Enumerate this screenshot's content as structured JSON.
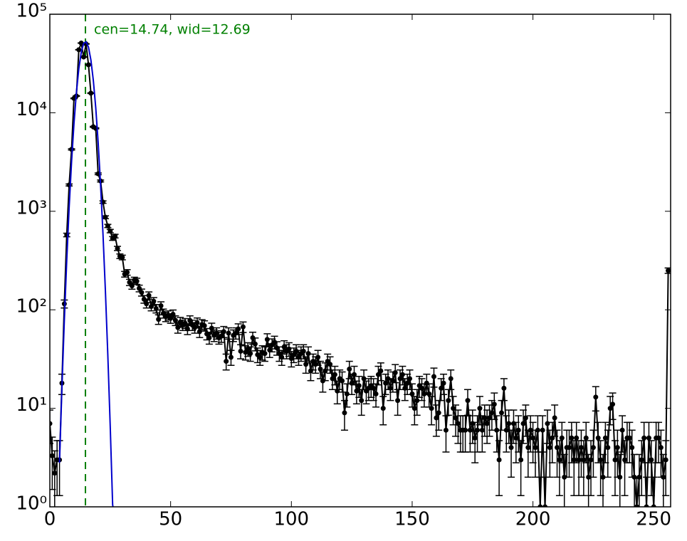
{
  "chart_data": {
    "type": "errorbar-line",
    "annotation": "cen=14.74, wid=12.69",
    "annotation_color": "#008000",
    "reference_line": {
      "x": 14.74,
      "color": "#008000",
      "style": "dashed"
    },
    "xlim": [
      0,
      257
    ],
    "xticks": [
      0,
      50,
      100,
      150,
      200,
      250
    ],
    "ylim": [
      1,
      100000
    ],
    "log_y": true,
    "yticks": [
      {
        "value": 1,
        "label": "10⁰"
      },
      {
        "value": 10,
        "label": "10¹"
      },
      {
        "value": 100,
        "label": "10²"
      },
      {
        "value": 1000,
        "label": "10³"
      },
      {
        "value": 10000,
        "label": "10⁴"
      },
      {
        "value": 100000,
        "label": "10⁵"
      }
    ],
    "grid": false,
    "series": [
      {
        "color": "#000000",
        "markers": true,
        "x": [
          0,
          1,
          2,
          3,
          4,
          5,
          6,
          7,
          8,
          9,
          10,
          11,
          12,
          13,
          14,
          15,
          16,
          17,
          18,
          19,
          20,
          21,
          22,
          23,
          24,
          25,
          26,
          27,
          28,
          29,
          30,
          31,
          32,
          33,
          34,
          35,
          36,
          37,
          38,
          39,
          40,
          41,
          42,
          43,
          44,
          45,
          46,
          47,
          48,
          49,
          50,
          51,
          52,
          53,
          54,
          55,
          56,
          57,
          58,
          59,
          60,
          61,
          62,
          63,
          64,
          65,
          66,
          67,
          68,
          69,
          70,
          71,
          72,
          73,
          74,
          75,
          76,
          77,
          78,
          79,
          80,
          81,
          82,
          83,
          84,
          85,
          86,
          87,
          88,
          89,
          90,
          91,
          92,
          93,
          94,
          95,
          96,
          97,
          98,
          99,
          100,
          101,
          102,
          103,
          104,
          105,
          106,
          107,
          108,
          109,
          110,
          111,
          112,
          113,
          114,
          115,
          116,
          117,
          118,
          119,
          120,
          121,
          122,
          123,
          124,
          125,
          126,
          127,
          128,
          129,
          130,
          131,
          132,
          133,
          134,
          135,
          136,
          137,
          138,
          139,
          140,
          141,
          142,
          143,
          144,
          145,
          146,
          147,
          148,
          149,
          150,
          151,
          152,
          153,
          154,
          155,
          156,
          157,
          158,
          159,
          160,
          161,
          162,
          163,
          164,
          165,
          166,
          167,
          168,
          169,
          170,
          171,
          172,
          173,
          174,
          175,
          176,
          177,
          178,
          179,
          180,
          181,
          182,
          183,
          184,
          185,
          186,
          187,
          188,
          189,
          190,
          191,
          192,
          193,
          194,
          195,
          196,
          197,
          198,
          199,
          200,
          201,
          202,
          203,
          204,
          205,
          206,
          207,
          208,
          209,
          210,
          211,
          212,
          213,
          214,
          215,
          216,
          217,
          218,
          219,
          220,
          221,
          222,
          223,
          224,
          225,
          226,
          227,
          228,
          229,
          230,
          231,
          232,
          233,
          234,
          235,
          236,
          237,
          238,
          239,
          240,
          241,
          242,
          243,
          244,
          245,
          246,
          247,
          248,
          249,
          250,
          251,
          252,
          253,
          254,
          255,
          256
        ],
        "values": [
          7,
          3.3,
          2.2,
          3,
          3,
          18,
          115,
          575,
          1850,
          4250,
          14000,
          14800,
          43600,
          51000,
          36800,
          50000,
          30700,
          15800,
          7200,
          6950,
          2400,
          2030,
          1240,
          870,
          710,
          630,
          530,
          560,
          420,
          350,
          340,
          230,
          240,
          190,
          175,
          200,
          195,
          165,
          150,
          128,
          115,
          140,
          108,
          122,
          103,
          80,
          110,
          92,
          85,
          88,
          82,
          90,
          78,
          66,
          75,
          70,
          73,
          64,
          78,
          70,
          66,
          74,
          60,
          71,
          69,
          57,
          52,
          65,
          55,
          58,
          52,
          54,
          60,
          30,
          58,
          33,
          55,
          58,
          64,
          38,
          67,
          37,
          40,
          36,
          52,
          45,
          35,
          33,
          37,
          36,
          50,
          39,
          44,
          47,
          41,
          36,
          33,
          42,
          38,
          40,
          32,
          35,
          38,
          33,
          36,
          38,
          28,
          36,
          24,
          30,
          28,
          33,
          25,
          19,
          24,
          30,
          28,
          20,
          22,
          15,
          20,
          19,
          9,
          14,
          25,
          18,
          22,
          15,
          17,
          12,
          20,
          15,
          16,
          17,
          16,
          14,
          22,
          24,
          10,
          18,
          20,
          16,
          19,
          23,
          12,
          20,
          22,
          16,
          18,
          20,
          14,
          10,
          12,
          17,
          16,
          14,
          18,
          14,
          10,
          21,
          8,
          9,
          16,
          18,
          6,
          12,
          20,
          10,
          8,
          7,
          6,
          6,
          6,
          12,
          6,
          7,
          5,
          6,
          10,
          6,
          8,
          7,
          8,
          9,
          11,
          6,
          3,
          9,
          16,
          6,
          7,
          4,
          7,
          5,
          6,
          3,
          7,
          8,
          4,
          6,
          5,
          4,
          6,
          1,
          6,
          1,
          7,
          4,
          5,
          8,
          4,
          3,
          5,
          2,
          4,
          4,
          5,
          3,
          5,
          3,
          4,
          3,
          5,
          2,
          3,
          4,
          13,
          5,
          3,
          2,
          5,
          4,
          10,
          11,
          3,
          4,
          2,
          6,
          3,
          5,
          5,
          4,
          2,
          1,
          2,
          3,
          5,
          1,
          5,
          3,
          1,
          5,
          5,
          4,
          2,
          3,
          250
        ],
        "errors": [
          2.6,
          1.8,
          1.5,
          1.7,
          1.7,
          4.2,
          10.7,
          24,
          43,
          65,
          118,
          122,
          209,
          226,
          192,
          224,
          175,
          126,
          85,
          83,
          49,
          45,
          35,
          29.5,
          26.6,
          25.1,
          23,
          23.7,
          20.5,
          18.7,
          18.4,
          15.2,
          15.5,
          13.8,
          13.2,
          14.1,
          14,
          12.8,
          12.2,
          11.3,
          10.7,
          11.8,
          10.4,
          11,
          10.1,
          8.9,
          10.5,
          9.6,
          9.2,
          9.4,
          9.1,
          9.5,
          8.8,
          8.1,
          8.7,
          8.4,
          8.5,
          8,
          8.8,
          8.4,
          8.1,
          8.6,
          7.7,
          8.4,
          8.3,
          7.5,
          7.2,
          8.1,
          7.4,
          7.6,
          7.2,
          7.3,
          7.7,
          5.5,
          7.6,
          5.7,
          7.4,
          7.6,
          8,
          6.2,
          8.2,
          6.1,
          6.3,
          6,
          7.2,
          6.7,
          5.9,
          5.7,
          6.1,
          6,
          7.1,
          6.2,
          6.6,
          6.9,
          6.4,
          6,
          5.7,
          6.5,
          6.2,
          6.3,
          5.7,
          5.9,
          6.2,
          5.7,
          6,
          6.2,
          5.3,
          6,
          4.9,
          5.5,
          5.3,
          5.7,
          5,
          4.4,
          4.9,
          5.5,
          5.3,
          4.5,
          4.7,
          3.9,
          4.5,
          4.4,
          3,
          3.7,
          5,
          4.2,
          4.7,
          3.9,
          4.1,
          3.5,
          4.5,
          3.9,
          4,
          4.1,
          4,
          3.7,
          4.7,
          4.9,
          3.2,
          4.2,
          4.5,
          4,
          4.4,
          4.8,
          3.5,
          4.5,
          4.7,
          4,
          4.2,
          4.5,
          3.7,
          3.2,
          3.5,
          4.1,
          4,
          3.7,
          4.2,
          3.7,
          3.2,
          4.6,
          2.8,
          3,
          4,
          4.2,
          2.4,
          3.5,
          4.5,
          3.2,
          2.8,
          2.6,
          2.4,
          2.4,
          2.4,
          3.5,
          2.4,
          2.6,
          2.2,
          2.4,
          3.2,
          2.4,
          2.8,
          2.6,
          2.8,
          3,
          3.3,
          2.4,
          1.7,
          3,
          4,
          2.4,
          2.6,
          2,
          2.6,
          2.2,
          2.4,
          1.7,
          2.6,
          2.8,
          2,
          2.4,
          2.2,
          2,
          2.4,
          1,
          2.4,
          1,
          2.6,
          2,
          2.2,
          2.8,
          2,
          1.7,
          2.2,
          1.4,
          2,
          2,
          2.2,
          1.7,
          2.2,
          1.7,
          2,
          1.7,
          2.2,
          1.4,
          1.7,
          2,
          3.6,
          2.2,
          1.7,
          1.4,
          2.2,
          2,
          3.2,
          3.3,
          1.7,
          2,
          1.4,
          2.4,
          1.7,
          2.2,
          2.2,
          2,
          1.4,
          1,
          1.4,
          1.7,
          2.2,
          1,
          2.2,
          1.7,
          1,
          2.2,
          2.2,
          2,
          1.4,
          1.7,
          15.8
        ]
      },
      {
        "color": "#0000cc",
        "markers": false,
        "x": [
          4,
          5,
          6,
          7,
          8,
          9,
          10,
          11,
          12,
          13,
          14,
          15,
          16,
          17,
          18,
          19,
          20,
          21,
          22,
          23,
          24,
          25,
          26,
          27
        ],
        "values": [
          2.8,
          16,
          78,
          318,
          1100,
          3200,
          7800,
          16100,
          28000,
          41000,
          50700,
          52500,
          46300,
          34300,
          21400,
          11300,
          5000,
          1870,
          590,
          156,
          35,
          6.6,
          1.05,
          0.14
        ]
      }
    ]
  }
}
